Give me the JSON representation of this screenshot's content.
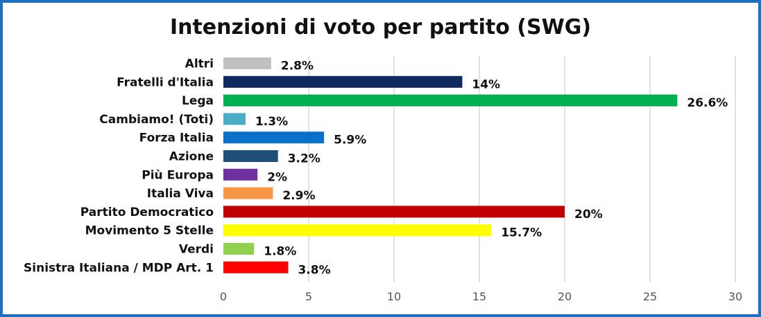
{
  "chart_data": {
    "type": "bar",
    "orientation": "horizontal",
    "title": "Intenzioni di voto per partito (SWG)",
    "categories": [
      "Altri",
      "Fratelli d'Italia",
      "Lega",
      "Cambiamo! (Toti)",
      "Forza Italia",
      "Azione",
      "Più Europa",
      "Italia Viva",
      "Partito Democratico",
      "Movimento 5 Stelle",
      "Verdi",
      "Sinistra Italiana / MDP Art. 1"
    ],
    "values": [
      2.8,
      14,
      26.6,
      1.3,
      5.9,
      3.2,
      2,
      2.9,
      20,
      15.7,
      1.8,
      3.8
    ],
    "value_labels": [
      "2.8%",
      "14%",
      "26.6%",
      "1.3%",
      "5.9%",
      "3.2%",
      "2%",
      "2.9%",
      "20%",
      "15.7%",
      "1.8%",
      "3.8%"
    ],
    "colors": [
      "#c0c0c0",
      "#0e2a5e",
      "#00b050",
      "#4bacc6",
      "#0a70c8",
      "#1f4e79",
      "#7030a0",
      "#f79646",
      "#c00000",
      "#ffff00",
      "#92d050",
      "#ff0000"
    ],
    "xlim": [
      0,
      30
    ],
    "xticks": [
      0,
      5,
      10,
      15,
      20,
      25,
      30
    ],
    "grid": true,
    "legend": "none"
  },
  "colors": {
    "border": "#1f6fbf",
    "grid": "#d9d9d9"
  }
}
